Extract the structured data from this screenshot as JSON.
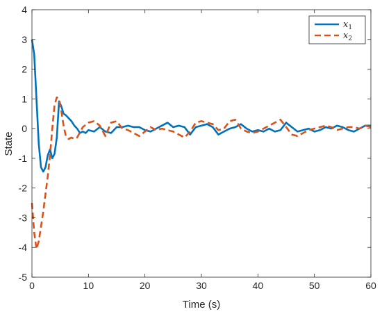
{
  "chart_data": {
    "type": "line",
    "title": "",
    "xlabel": "Time (s)",
    "ylabel": "State",
    "xlim": [
      0,
      60
    ],
    "ylim": [
      -5,
      4
    ],
    "xticks": [
      0,
      10,
      20,
      30,
      40,
      50,
      60
    ],
    "yticks": [
      -5,
      -4,
      -3,
      -2,
      -1,
      0,
      1,
      2,
      3,
      4
    ],
    "grid": false,
    "legend_position": "top-right",
    "series": [
      {
        "name": "x1",
        "legend_base": "x",
        "legend_sub": "1",
        "color": "#0072BD",
        "style": "solid",
        "points": [
          [
            0,
            3.0
          ],
          [
            0.4,
            2.5
          ],
          [
            0.8,
            1.0
          ],
          [
            1.2,
            -0.5
          ],
          [
            1.6,
            -1.3
          ],
          [
            2.0,
            -1.45
          ],
          [
            2.4,
            -1.3
          ],
          [
            2.8,
            -0.9
          ],
          [
            3.2,
            -0.7
          ],
          [
            3.6,
            -1.0
          ],
          [
            4.0,
            -0.85
          ],
          [
            4.4,
            -0.3
          ],
          [
            4.8,
            0.92
          ],
          [
            5.2,
            0.75
          ],
          [
            5.6,
            0.5
          ],
          [
            6.0,
            0.45
          ],
          [
            6.5,
            0.35
          ],
          [
            7.0,
            0.25
          ],
          [
            7.5,
            0.1
          ],
          [
            8.0,
            0.0
          ],
          [
            8.5,
            -0.15
          ],
          [
            9.0,
            -0.1
          ],
          [
            9.5,
            -0.15
          ],
          [
            10.0,
            -0.05
          ],
          [
            11.0,
            -0.1
          ],
          [
            12.0,
            0.05
          ],
          [
            13.0,
            -0.1
          ],
          [
            14.0,
            -0.15
          ],
          [
            15.0,
            0.05
          ],
          [
            16.0,
            0.05
          ],
          [
            17.0,
            0.1
          ],
          [
            18.0,
            0.05
          ],
          [
            19.0,
            0.05
          ],
          [
            20.0,
            -0.05
          ],
          [
            21.0,
            -0.1
          ],
          [
            22.0,
            0.0
          ],
          [
            23.0,
            0.1
          ],
          [
            24.0,
            0.2
          ],
          [
            25.0,
            0.05
          ],
          [
            26.0,
            0.1
          ],
          [
            27.0,
            0.05
          ],
          [
            28.0,
            -0.2
          ],
          [
            29.0,
            0.05
          ],
          [
            30.0,
            0.1
          ],
          [
            31.0,
            0.15
          ],
          [
            32.0,
            0.05
          ],
          [
            33.0,
            -0.2
          ],
          [
            34.0,
            -0.1
          ],
          [
            35.0,
            0.0
          ],
          [
            36.0,
            0.05
          ],
          [
            37.0,
            0.15
          ],
          [
            38.0,
            0.0
          ],
          [
            39.0,
            -0.1
          ],
          [
            40.0,
            -0.05
          ],
          [
            41.0,
            -0.1
          ],
          [
            42.0,
            0.0
          ],
          [
            43.0,
            -0.1
          ],
          [
            44.0,
            -0.05
          ],
          [
            45.0,
            0.2
          ],
          [
            46.0,
            0.05
          ],
          [
            47.0,
            -0.1
          ],
          [
            48.0,
            -0.05
          ],
          [
            49.0,
            0.0
          ],
          [
            50.0,
            -0.1
          ],
          [
            51.0,
            -0.05
          ],
          [
            52.0,
            0.05
          ],
          [
            53.0,
            0.0
          ],
          [
            54.0,
            0.1
          ],
          [
            55.0,
            0.05
          ],
          [
            56.0,
            -0.05
          ],
          [
            57.0,
            -0.1
          ],
          [
            58.0,
            0.0
          ],
          [
            59.0,
            0.1
          ],
          [
            60.0,
            0.1
          ]
        ]
      },
      {
        "name": "x2",
        "legend_base": "x",
        "legend_sub": "2",
        "color": "#D95319",
        "style": "dashed",
        "points": [
          [
            0,
            -2.5
          ],
          [
            0.4,
            -3.5
          ],
          [
            0.8,
            -4.05
          ],
          [
            1.2,
            -3.8
          ],
          [
            1.6,
            -3.3
          ],
          [
            2.0,
            -2.8
          ],
          [
            2.4,
            -2.2
          ],
          [
            2.8,
            -1.6
          ],
          [
            3.2,
            -0.9
          ],
          [
            3.6,
            0.0
          ],
          [
            4.0,
            0.8
          ],
          [
            4.4,
            1.05
          ],
          [
            4.8,
            1.0
          ],
          [
            5.2,
            0.6
          ],
          [
            5.6,
            0.1
          ],
          [
            6.0,
            -0.25
          ],
          [
            6.5,
            -0.35
          ],
          [
            7.0,
            -0.3
          ],
          [
            7.5,
            -0.35
          ],
          [
            8.0,
            -0.3
          ],
          [
            9.0,
            0.05
          ],
          [
            10.0,
            0.2
          ],
          [
            11.0,
            0.25
          ],
          [
            12.0,
            0.1
          ],
          [
            13.0,
            -0.25
          ],
          [
            14.0,
            0.2
          ],
          [
            15.0,
            0.25
          ],
          [
            16.0,
            0.0
          ],
          [
            17.0,
            -0.05
          ],
          [
            18.0,
            -0.15
          ],
          [
            19.0,
            -0.25
          ],
          [
            20.0,
            -0.1
          ],
          [
            21.0,
            0.05
          ],
          [
            22.0,
            -0.05
          ],
          [
            23.0,
            0.0
          ],
          [
            24.0,
            -0.05
          ],
          [
            25.0,
            -0.1
          ],
          [
            26.0,
            -0.2
          ],
          [
            27.0,
            -0.3
          ],
          [
            28.0,
            -0.1
          ],
          [
            29.0,
            0.2
          ],
          [
            30.0,
            0.25
          ],
          [
            31.0,
            0.2
          ],
          [
            32.0,
            0.15
          ],
          [
            33.0,
            -0.05
          ],
          [
            34.0,
            0.0
          ],
          [
            35.0,
            0.25
          ],
          [
            36.0,
            0.3
          ],
          [
            37.0,
            0.0
          ],
          [
            38.0,
            -0.1
          ],
          [
            39.0,
            -0.15
          ],
          [
            40.0,
            -0.1
          ],
          [
            41.0,
            0.0
          ],
          [
            42.0,
            0.1
          ],
          [
            43.0,
            0.2
          ],
          [
            44.0,
            0.3
          ],
          [
            45.0,
            0.05
          ],
          [
            46.0,
            -0.2
          ],
          [
            47.0,
            -0.25
          ],
          [
            48.0,
            -0.15
          ],
          [
            49.0,
            -0.05
          ],
          [
            50.0,
            0.0
          ],
          [
            51.0,
            0.05
          ],
          [
            52.0,
            0.1
          ],
          [
            53.0,
            0.05
          ],
          [
            54.0,
            -0.05
          ],
          [
            55.0,
            0.0
          ],
          [
            56.0,
            0.05
          ],
          [
            57.0,
            0.05
          ],
          [
            58.0,
            0.0
          ],
          [
            59.0,
            0.1
          ],
          [
            60.0,
            0.05
          ]
        ]
      }
    ]
  }
}
